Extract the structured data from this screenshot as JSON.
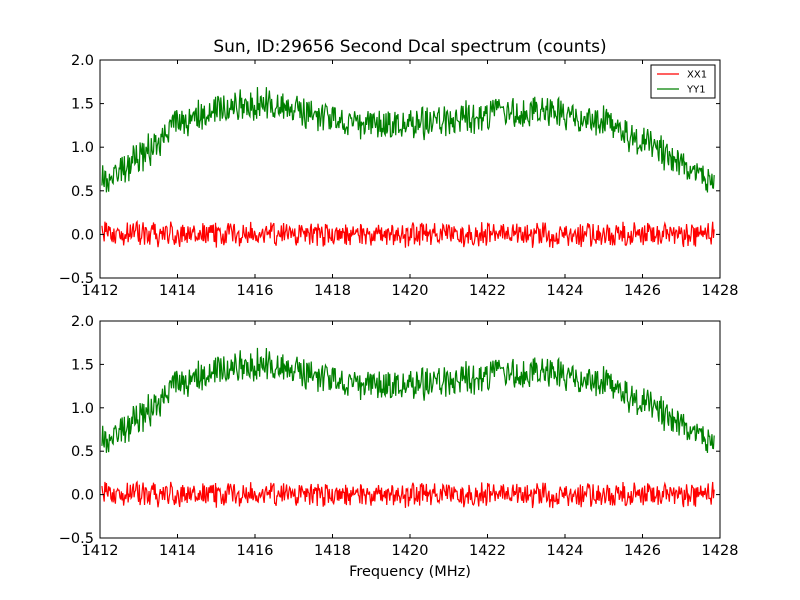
{
  "figure": {
    "title": "Sun, ID:29656 Second Dcal spectrum (counts)"
  },
  "chart_data": [
    {
      "type": "line",
      "xlabel": "",
      "ylabel": "",
      "xlim": [
        1412,
        1428
      ],
      "ylim": [
        -0.5,
        2.0
      ],
      "xticks": [
        "1412",
        "1414",
        "1416",
        "1418",
        "1420",
        "1422",
        "1424",
        "1426",
        "1428"
      ],
      "yticks": [
        "−0.5",
        "0.0",
        "0.5",
        "1.0",
        "1.5",
        "2.0"
      ],
      "grid": false,
      "legend": {
        "placement": "top-right",
        "entries": [
          "XX1",
          "YY1"
        ]
      },
      "x_range": [
        1412.05,
        1427.85
      ],
      "series": [
        {
          "name": "XX1",
          "color": "#ff0000",
          "noise_amplitude": 0.12,
          "envelope": [
            [
              1412.05,
              0.0
            ],
            [
              1427.85,
              0.0
            ]
          ]
        },
        {
          "name": "YY1",
          "color": "#008000",
          "noise_amplitude": 0.16,
          "envelope": [
            [
              1412.05,
              0.62
            ],
            [
              1413.0,
              0.85
            ],
            [
              1414.0,
              1.25
            ],
            [
              1415.0,
              1.42
            ],
            [
              1416.0,
              1.5
            ],
            [
              1417.0,
              1.42
            ],
            [
              1418.0,
              1.32
            ],
            [
              1419.0,
              1.25
            ],
            [
              1420.0,
              1.25
            ],
            [
              1421.0,
              1.3
            ],
            [
              1422.0,
              1.38
            ],
            [
              1423.0,
              1.42
            ],
            [
              1424.0,
              1.38
            ],
            [
              1425.0,
              1.3
            ],
            [
              1426.0,
              1.05
            ],
            [
              1427.0,
              0.8
            ],
            [
              1427.85,
              0.62
            ]
          ]
        }
      ]
    },
    {
      "type": "line",
      "xlabel": "Frequency (MHz)",
      "ylabel": "",
      "xlim": [
        1412,
        1428
      ],
      "ylim": [
        -0.5,
        2.0
      ],
      "xticks": [
        "1412",
        "1414",
        "1416",
        "1418",
        "1420",
        "1422",
        "1424",
        "1426",
        "1428"
      ],
      "yticks": [
        "−0.5",
        "0.0",
        "0.5",
        "1.0",
        "1.5",
        "2.0"
      ],
      "grid": false,
      "x_range": [
        1412.05,
        1427.85
      ],
      "series": [
        {
          "name": "XX1",
          "color": "#ff0000",
          "noise_amplitude": 0.12,
          "envelope": [
            [
              1412.05,
              0.0
            ],
            [
              1427.85,
              0.0
            ]
          ]
        },
        {
          "name": "YY1",
          "color": "#008000",
          "noise_amplitude": 0.16,
          "envelope": [
            [
              1412.05,
              0.62
            ],
            [
              1413.0,
              0.85
            ],
            [
              1414.0,
              1.25
            ],
            [
              1415.0,
              1.42
            ],
            [
              1416.0,
              1.5
            ],
            [
              1417.0,
              1.42
            ],
            [
              1418.0,
              1.32
            ],
            [
              1419.0,
              1.25
            ],
            [
              1420.0,
              1.25
            ],
            [
              1421.0,
              1.3
            ],
            [
              1422.0,
              1.38
            ],
            [
              1423.0,
              1.42
            ],
            [
              1424.0,
              1.38
            ],
            [
              1425.0,
              1.3
            ],
            [
              1426.0,
              1.05
            ],
            [
              1427.0,
              0.8
            ],
            [
              1427.85,
              0.62
            ]
          ]
        }
      ]
    }
  ]
}
